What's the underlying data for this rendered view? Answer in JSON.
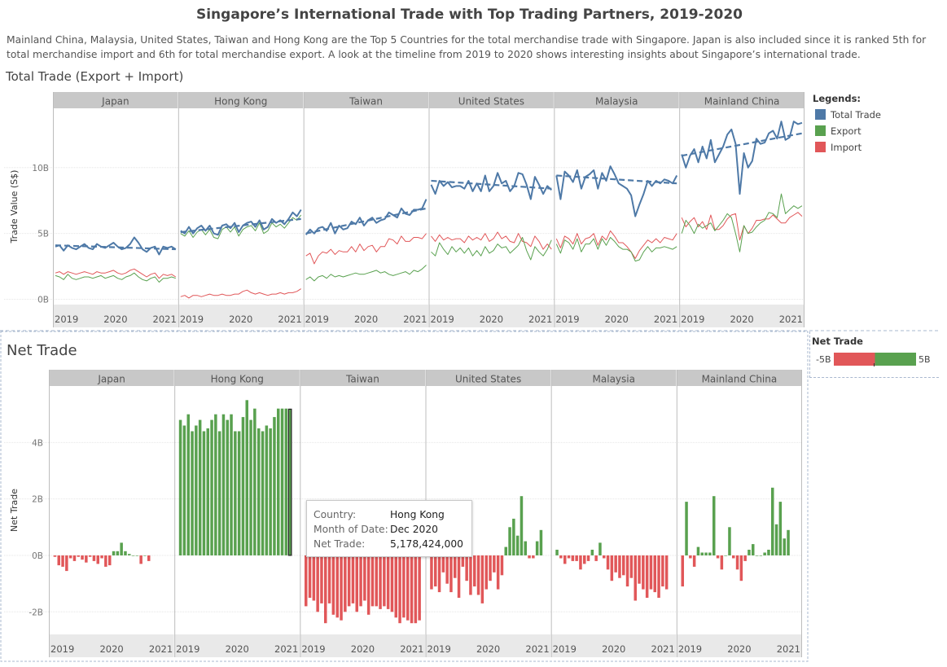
{
  "title": "Singapore’s International Trade with Top Trading Partners, 2019-2020",
  "description": "Mainland China, Malaysia, United States, Taiwan and Hong Kong are the Top 5 Countries for the total merchandise trade with Singapore. Japan is also included since it is ranked 5th for total merchandise import and 6th for total merchandise export. A look at the timeline from 2019 to 2020 shows interesting insights about Singapore’s international trade.",
  "total_section_title": "Total Trade (Export + Import)",
  "net_section_title": "Net Trade",
  "legend": {
    "title": "Legends:",
    "items": [
      {
        "label": "Total Trade",
        "color": "#4e79a7"
      },
      {
        "label": "Export",
        "color": "#59a14f"
      },
      {
        "label": "Import",
        "color": "#e15759"
      }
    ]
  },
  "net_legend": {
    "title": "Net Trade",
    "min_label": "-5B",
    "max_label": "5B",
    "neg_color": "#e15759",
    "pos_color": "#59a14f"
  },
  "tooltip": {
    "rows": [
      {
        "key": "Country:",
        "value": "Hong Kong"
      },
      {
        "key": "Month of Date:",
        "value": "Dec 2020"
      },
      {
        "key": "Net Trade:",
        "value": "5,178,424,000"
      }
    ]
  },
  "colors": {
    "total": "#4e79a7",
    "export": "#59a14f",
    "import": "#e15759",
    "header_bg": "#c8c8c8",
    "axis_bg": "#e9e9e9"
  },
  "chart_data": [
    {
      "type": "line",
      "title": "Total Trade (Export + Import)",
      "ylabel": "Trade Value (S$)",
      "ytick_labels": [
        "0B",
        "5B",
        "10B"
      ],
      "ylim": [
        -0.4,
        14.5
      ],
      "units": "billion S$",
      "x_tick_labels": [
        "2019",
        "2020",
        "2021"
      ],
      "facets": [
        {
          "name": "Japan",
          "total": [
            4.0,
            4.1,
            3.7,
            4.1,
            3.9,
            3.8,
            4.0,
            4.2,
            3.9,
            3.8,
            4.2,
            4.0,
            3.9,
            4.1,
            4.3,
            4.0,
            3.8,
            3.9,
            4.2,
            4.7,
            4.3,
            3.8,
            3.6,
            3.9,
            4.0,
            3.4,
            4.0,
            3.9,
            4.0,
            3.8
          ],
          "export": [
            1.8,
            1.7,
            1.5,
            1.9,
            1.6,
            1.5,
            1.6,
            1.7,
            1.7,
            1.6,
            1.7,
            1.8,
            1.6,
            1.7,
            1.8,
            1.6,
            1.5,
            1.7,
            1.8,
            2.0,
            1.7,
            1.5,
            1.4,
            1.6,
            1.7,
            1.3,
            1.6,
            1.6,
            1.7,
            1.6
          ],
          "import": [
            2.0,
            2.1,
            1.9,
            2.1,
            2.0,
            1.9,
            2.0,
            2.1,
            2.0,
            1.9,
            2.1,
            2.0,
            2.0,
            2.1,
            2.2,
            2.0,
            1.9,
            2.0,
            2.2,
            2.3,
            2.1,
            1.9,
            1.7,
            1.9,
            2.0,
            1.6,
            1.9,
            1.8,
            1.9,
            1.7
          ],
          "trend": [
            4.1,
            3.8
          ]
        },
        {
          "name": "Hong Kong",
          "total": [
            5.2,
            5.0,
            5.5,
            5.0,
            5.4,
            5.6,
            5.2,
            5.6,
            5.0,
            4.9,
            5.6,
            5.7,
            5.4,
            5.8,
            5.1,
            5.6,
            5.8,
            5.9,
            5.5,
            6.0,
            5.3,
            5.5,
            6.1,
            5.8,
            6.0,
            5.7,
            6.1,
            6.6,
            6.3,
            6.8
          ],
          "export": [
            5.0,
            4.8,
            5.2,
            4.7,
            5.1,
            5.3,
            4.9,
            5.3,
            4.7,
            4.6,
            5.3,
            5.5,
            5.1,
            5.5,
            4.8,
            5.3,
            5.5,
            5.6,
            5.2,
            5.8,
            5.0,
            5.2,
            5.8,
            5.5,
            5.7,
            5.4,
            5.8,
            6.2,
            6.0,
            6.4
          ],
          "import": [
            0.2,
            0.3,
            0.1,
            0.3,
            0.3,
            0.2,
            0.3,
            0.4,
            0.3,
            0.3,
            0.4,
            0.3,
            0.3,
            0.4,
            0.4,
            0.6,
            0.7,
            0.5,
            0.4,
            0.5,
            0.4,
            0.3,
            0.4,
            0.4,
            0.5,
            0.4,
            0.5,
            0.5,
            0.6,
            0.8
          ],
          "trend": [
            5.1,
            6.1
          ]
        },
        {
          "name": "Taiwan",
          "total": [
            4.9,
            5.3,
            5.0,
            5.4,
            5.5,
            5.2,
            5.8,
            5.0,
            5.6,
            5.3,
            5.4,
            5.9,
            5.7,
            6.2,
            5.6,
            6.0,
            6.2,
            5.8,
            6.0,
            6.1,
            6.6,
            6.4,
            6.2,
            6.9,
            6.5,
            6.4,
            6.8,
            6.8,
            6.9,
            7.6
          ],
          "export": [
            1.5,
            1.7,
            1.4,
            1.7,
            1.8,
            1.6,
            1.9,
            1.7,
            1.8,
            1.7,
            1.8,
            1.9,
            2.0,
            1.9,
            1.9,
            2.0,
            2.1,
            2.2,
            2.0,
            2.1,
            1.9,
            1.8,
            1.9,
            2.0,
            2.1,
            1.9,
            2.2,
            2.1,
            2.3,
            2.6
          ],
          "import": [
            3.3,
            3.5,
            2.7,
            3.3,
            3.6,
            3.5,
            3.8,
            3.4,
            3.7,
            3.6,
            3.6,
            4.0,
            3.6,
            4.2,
            3.7,
            4.0,
            4.1,
            3.6,
            4.0,
            4.0,
            4.6,
            4.5,
            4.2,
            4.8,
            4.4,
            4.4,
            4.7,
            4.7,
            4.6,
            5.0
          ],
          "trend": [
            5.0,
            6.9
          ]
        },
        {
          "name": "United States",
          "total": [
            8.7,
            8.0,
            9.0,
            8.6,
            8.9,
            8.5,
            8.6,
            8.6,
            8.4,
            9.0,
            8.2,
            8.8,
            8.2,
            9.4,
            8.2,
            8.6,
            9.6,
            8.8,
            9.0,
            8.2,
            8.6,
            9.6,
            9.5,
            8.7,
            7.6,
            9.3,
            8.7,
            8.0,
            8.6,
            8.3
          ],
          "export": [
            3.6,
            3.3,
            4.3,
            3.8,
            3.4,
            4.0,
            3.6,
            3.9,
            3.5,
            3.9,
            3.3,
            3.7,
            3.3,
            4.0,
            3.5,
            3.7,
            4.2,
            3.9,
            4.0,
            3.5,
            3.8,
            4.1,
            4.7,
            3.7,
            3.0,
            4.0,
            3.6,
            3.3,
            3.8,
            4.5
          ],
          "import": [
            4.8,
            4.4,
            4.9,
            4.5,
            4.7,
            4.5,
            4.6,
            4.6,
            4.3,
            4.8,
            4.5,
            4.7,
            4.5,
            5.0,
            4.4,
            4.6,
            5.1,
            4.6,
            4.8,
            4.4,
            4.3,
            5.0,
            4.4,
            4.3,
            4.0,
            4.8,
            4.4,
            3.8,
            4.2,
            3.8
          ],
          "trend": [
            9.0,
            8.4
          ]
        },
        {
          "name": "Malaysia",
          "total": [
            9.4,
            7.6,
            9.7,
            9.4,
            8.9,
            9.8,
            8.4,
            9.3,
            9.5,
            9.8,
            8.4,
            9.6,
            9.0,
            10.1,
            9.5,
            8.8,
            8.6,
            8.4,
            7.9,
            6.3,
            7.2,
            8.0,
            9.0,
            8.6,
            9.0,
            8.8,
            9.1,
            9.0,
            8.8,
            9.4
          ],
          "export": [
            4.2,
            3.5,
            4.5,
            4.3,
            3.8,
            4.6,
            3.6,
            4.2,
            4.2,
            4.6,
            3.8,
            4.6,
            4.1,
            4.7,
            4.4,
            4.0,
            3.8,
            3.8,
            3.6,
            2.9,
            3.0,
            3.6,
            4.0,
            3.6,
            3.9,
            3.9,
            4.0,
            3.9,
            3.8,
            4.0
          ],
          "import": [
            4.6,
            3.9,
            4.8,
            4.6,
            4.2,
            5.0,
            4.2,
            4.6,
            4.7,
            5.0,
            4.1,
            4.8,
            4.5,
            5.2,
            4.8,
            4.3,
            4.3,
            4.0,
            3.6,
            3.1,
            3.7,
            4.1,
            4.5,
            4.3,
            4.6,
            4.3,
            4.7,
            4.6,
            4.5,
            5.0
          ],
          "trend": [
            9.4,
            8.8
          ]
        },
        {
          "name": "Mainland China",
          "total": [
            11.0,
            10.0,
            10.9,
            11.4,
            10.4,
            11.6,
            10.7,
            12.1,
            10.4,
            11.0,
            11.6,
            12.5,
            12.9,
            11.8,
            8.0,
            11.1,
            10.0,
            10.5,
            12.2,
            11.8,
            11.9,
            12.6,
            12.8,
            12.2,
            13.5,
            12.1,
            12.3,
            13.5,
            13.3,
            13.4
          ],
          "export": [
            5.0,
            6.0,
            5.6,
            5.0,
            5.7,
            5.4,
            5.6,
            5.8,
            5.2,
            5.6,
            6.0,
            6.5,
            6.2,
            5.0,
            3.6,
            5.6,
            5.0,
            5.1,
            5.5,
            5.8,
            6.0,
            6.6,
            6.5,
            6.2,
            8.0,
            6.5,
            6.8,
            7.1,
            6.9,
            7.1
          ],
          "import": [
            6.2,
            5.5,
            5.9,
            6.2,
            5.5,
            5.9,
            5.3,
            6.4,
            5.3,
            5.3,
            5.6,
            6.1,
            6.4,
            6.5,
            4.5,
            5.6,
            5.0,
            5.4,
            6.0,
            6.0,
            6.1,
            6.1,
            6.4,
            6.1,
            5.8,
            5.8,
            6.2,
            6.4,
            6.6,
            6.3
          ],
          "trend": [
            10.9,
            12.6
          ]
        }
      ]
    },
    {
      "type": "bar",
      "title": "Net Trade",
      "ylabel": "Net Trade",
      "ytick_labels": [
        "-2B",
        "0B",
        "2B",
        "4B"
      ],
      "ylim": [
        -2.8,
        6.0
      ],
      "units": "billion S$",
      "x_tick_labels": [
        "2019",
        "2020",
        "2021"
      ],
      "facets": [
        {
          "name": "Japan",
          "values": [
            -0.05,
            -0.35,
            -0.4,
            -0.55,
            -0.1,
            -0.2,
            -0.05,
            -0.15,
            -0.25,
            -0.05,
            -0.2,
            -0.3,
            -0.1,
            -0.4,
            -0.35,
            0.15,
            0.15,
            0.45,
            0.15,
            0.05,
            0.0,
            0.0,
            -0.3,
            0.0,
            -0.2
          ]
        },
        {
          "name": "Hong Kong",
          "values": [
            4.8,
            4.6,
            5.0,
            4.4,
            4.6,
            4.8,
            4.4,
            4.5,
            4.8,
            5.0,
            4.4,
            5.0,
            4.8,
            5.0,
            4.4,
            4.4,
            4.9,
            5.5,
            4.8,
            5.2,
            4.5,
            4.4,
            4.6,
            4.5,
            4.9,
            5.2,
            5.2,
            5.2,
            5.18
          ]
        },
        {
          "name": "Taiwan",
          "values": [
            -1.8,
            -1.5,
            -1.6,
            -2.0,
            -1.7,
            -2.4,
            -1.7,
            -2.1,
            -2.2,
            -2.3,
            -2.0,
            -1.8,
            -1.7,
            -2.0,
            -1.8,
            -1.6,
            -2.1,
            -1.8,
            -1.8,
            -1.9,
            -1.8,
            -1.9,
            -2.0,
            -2.2,
            -2.4,
            -2.2,
            -2.3,
            -2.4,
            -2.4,
            -2.3
          ]
        },
        {
          "name": "United States",
          "values": [
            -1.2,
            -1.1,
            -1.3,
            -0.6,
            -1.0,
            -1.3,
            -0.8,
            -1.5,
            -0.4,
            -0.9,
            -1.4,
            -1.1,
            -1.4,
            -1.7,
            -1.2,
            -0.9,
            -0.6,
            -1.2,
            -0.7,
            0.3,
            1.0,
            1.3,
            0.7,
            2.1,
            0.5,
            -0.1,
            -0.1,
            0.5,
            0.9
          ]
        },
        {
          "name": "Malaysia",
          "values": [
            0.2,
            -0.1,
            -0.3,
            -0.1,
            -0.2,
            -0.2,
            -0.5,
            -0.3,
            -0.2,
            0.2,
            -0.2,
            0.45,
            -0.1,
            -0.5,
            -0.9,
            -0.6,
            -0.8,
            -0.7,
            -1.1,
            -0.8,
            -1.6,
            -1.0,
            -1.2,
            -1.5,
            -1.2,
            -1.3,
            -1.5,
            -1.1,
            -1.2
          ]
        },
        {
          "name": "Mainland China",
          "values": [
            -1.1,
            1.9,
            -0.1,
            -0.4,
            0.3,
            0.1,
            0.1,
            0.1,
            2.1,
            -0.1,
            -0.5,
            0.0,
            1.0,
            -0.1,
            -0.5,
            -0.9,
            -0.2,
            0.2,
            0.4,
            0.0,
            0.0,
            0.1,
            0.2,
            2.4,
            1.1,
            1.9,
            0.6,
            0.9
          ]
        }
      ]
    }
  ]
}
